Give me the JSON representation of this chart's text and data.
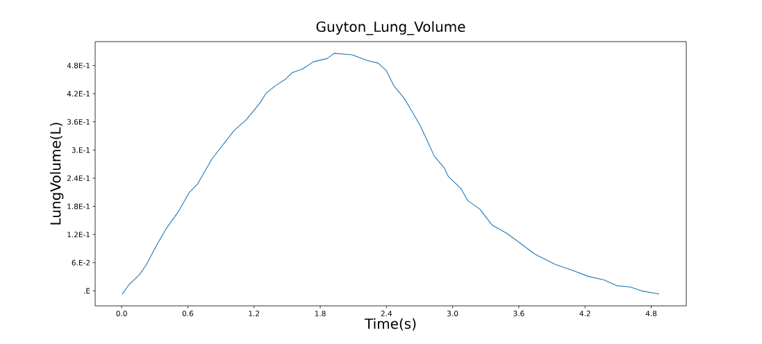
{
  "chart_data": {
    "type": "line",
    "title": "Guyton_Lung_Volume",
    "xlabel": "Time(s)",
    "ylabel": "LungVolume(L)",
    "x": [
      0.004,
      0.063,
      0.164,
      0.227,
      0.312,
      0.4,
      0.512,
      0.611,
      0.689,
      0.821,
      1.021,
      1.131,
      1.253,
      1.309,
      1.394,
      1.48,
      1.547,
      1.642,
      1.737,
      1.863,
      1.926,
      2.088,
      2.221,
      2.326,
      2.4,
      2.467,
      2.561,
      2.635,
      2.708,
      2.781,
      2.834,
      2.924,
      2.96,
      3.075,
      3.138,
      3.247,
      3.358,
      3.494,
      3.599,
      3.746,
      3.934,
      4.081,
      4.227,
      4.374,
      4.49,
      4.615,
      4.71,
      4.873
    ],
    "values": [
      -0.007,
      0.012,
      0.035,
      0.057,
      0.095,
      0.131,
      0.168,
      0.209,
      0.228,
      0.282,
      0.342,
      0.365,
      0.4,
      0.421,
      0.437,
      0.45,
      0.465,
      0.473,
      0.488,
      0.495,
      0.506,
      0.503,
      0.491,
      0.485,
      0.469,
      0.437,
      0.41,
      0.381,
      0.351,
      0.314,
      0.287,
      0.262,
      0.244,
      0.218,
      0.192,
      0.174,
      0.14,
      0.122,
      0.104,
      0.078,
      0.056,
      0.044,
      0.031,
      0.023,
      0.011,
      0.008,
      0.0,
      -0.007
    ],
    "color": "#1f77b4",
    "xlim": [
      -0.24,
      5.118
    ],
    "ylim": [
      -0.032,
      0.531
    ],
    "xticks": [
      {
        "value": 0,
        "label": "0.0"
      },
      {
        "value": 0.6,
        "label": "0.6"
      },
      {
        "value": 1.2,
        "label": "1.2"
      },
      {
        "value": 1.8,
        "label": "1.8"
      },
      {
        "value": 2.4,
        "label": "2.4"
      },
      {
        "value": 3.0,
        "label": "3.0"
      },
      {
        "value": 3.6,
        "label": "3.6"
      },
      {
        "value": 4.2,
        "label": "4.2"
      },
      {
        "value": 4.8,
        "label": "4.8"
      }
    ],
    "yticks": [
      {
        "value": 0,
        "label": ".E"
      },
      {
        "value": 0.06,
        "label": "6.E-2"
      },
      {
        "value": 0.12,
        "label": "1.2E-1"
      },
      {
        "value": 0.18,
        "label": "1.8E-1"
      },
      {
        "value": 0.24,
        "label": "2.4E-1"
      },
      {
        "value": 0.3,
        "label": "3.E-1"
      },
      {
        "value": 0.36,
        "label": "3.6E-1"
      },
      {
        "value": 0.42,
        "label": "4.2E-1"
      },
      {
        "value": 0.48,
        "label": "4.8E-1"
      }
    ]
  }
}
